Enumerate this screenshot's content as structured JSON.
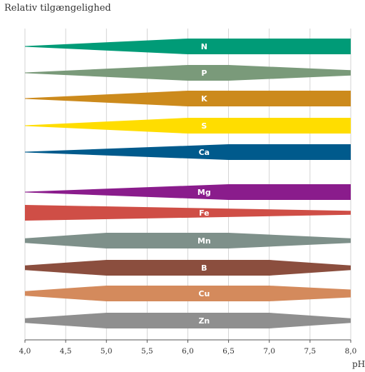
{
  "chart_data": {
    "type": "area",
    "title": "",
    "ylabel": "Relativ tilgængelighed",
    "xlabel": "pH",
    "xlim": [
      4.0,
      8.0
    ],
    "grid": true,
    "x_ticks": [
      "4,0",
      "4,5",
      "5,0",
      "5,5",
      "6,0",
      "6,5",
      "7,0",
      "7,5",
      "8,0"
    ],
    "x_tick_values": [
      4.0,
      4.5,
      5.0,
      5.5,
      6.0,
      6.5,
      7.0,
      7.5,
      8.0
    ],
    "series": [
      {
        "name": "N",
        "color": "#009b77",
        "x": [
          4.0,
          6.0,
          8.0
        ],
        "values": [
          0.0,
          1.0,
          1.0
        ]
      },
      {
        "name": "P",
        "color": "#7a9a7a",
        "x": [
          4.0,
          6.0,
          6.5,
          8.0
        ],
        "values": [
          0.0,
          1.0,
          1.0,
          0.35
        ]
      },
      {
        "name": "K",
        "color": "#cc8a1c",
        "x": [
          4.0,
          6.0,
          8.0
        ],
        "values": [
          0.0,
          1.0,
          1.0
        ]
      },
      {
        "name": "S",
        "color": "#ffdd00",
        "x": [
          4.0,
          6.0,
          8.0
        ],
        "values": [
          0.0,
          1.0,
          1.0
        ]
      },
      {
        "name": "Ca",
        "color": "#005a8c",
        "x": [
          4.0,
          6.5,
          8.0
        ],
        "values": [
          0.0,
          1.0,
          1.0
        ]
      },
      {
        "name": "Mg",
        "color": "#8a1c8c",
        "x": [
          4.0,
          6.5,
          8.0
        ],
        "values": [
          0.0,
          1.0,
          1.0
        ]
      },
      {
        "name": "Fe",
        "color": "#cf4e46",
        "x": [
          4.0,
          8.0
        ],
        "values": [
          1.0,
          0.25
        ]
      },
      {
        "name": "Mn",
        "color": "#7e908a",
        "x": [
          4.0,
          5.0,
          6.5,
          8.0
        ],
        "values": [
          0.3,
          1.0,
          1.0,
          0.3
        ]
      },
      {
        "name": "B",
        "color": "#8b4e3e",
        "x": [
          4.0,
          5.0,
          7.0,
          8.0
        ],
        "values": [
          0.3,
          1.0,
          1.0,
          0.3
        ]
      },
      {
        "name": "Cu",
        "color": "#d48a5c",
        "x": [
          4.0,
          5.0,
          7.0,
          8.0
        ],
        "values": [
          0.3,
          1.0,
          1.0,
          0.5
        ]
      },
      {
        "name": "Zn",
        "color": "#8f8f8f",
        "x": [
          4.0,
          5.0,
          7.0,
          8.0
        ],
        "values": [
          0.3,
          1.0,
          1.0,
          0.3
        ]
      }
    ]
  }
}
